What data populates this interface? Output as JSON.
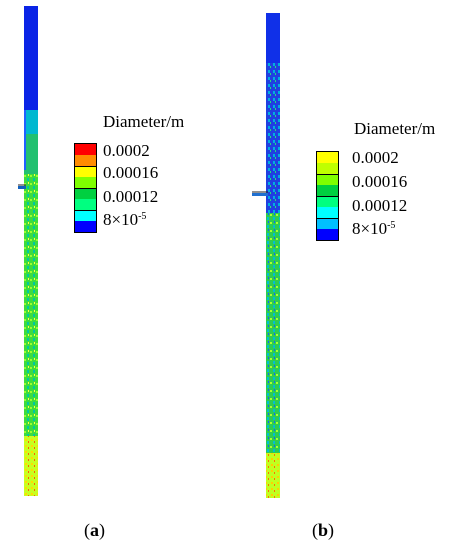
{
  "panels": [
    {
      "caption": {
        "open": "(",
        "letter": "a",
        "close": ")"
      },
      "legend": {
        "title": "Diameter/m",
        "labels": [
          "0.0002",
          "0.00016",
          "0.00012",
          "8×10"
        ],
        "exponent": "-5",
        "colors": [
          "#ff0000",
          "#ff8c00",
          "#ffff00",
          "#7fff00",
          "#00d040",
          "#00ff80",
          "#00ffff",
          "#0000ff"
        ]
      }
    },
    {
      "caption": {
        "open": "(",
        "letter": "b",
        "close": ")"
      },
      "legend": {
        "title": "Diameter/m",
        "labels": [
          "0.0002",
          "0.00016",
          "0.00012",
          "8×10"
        ],
        "exponent": "-5",
        "colors": [
          "#ffff00",
          "#bfff00",
          "#7fff00",
          "#00d040",
          "#00ff80",
          "#00ffff",
          "#00c0ff",
          "#0000ff"
        ]
      }
    }
  ]
}
